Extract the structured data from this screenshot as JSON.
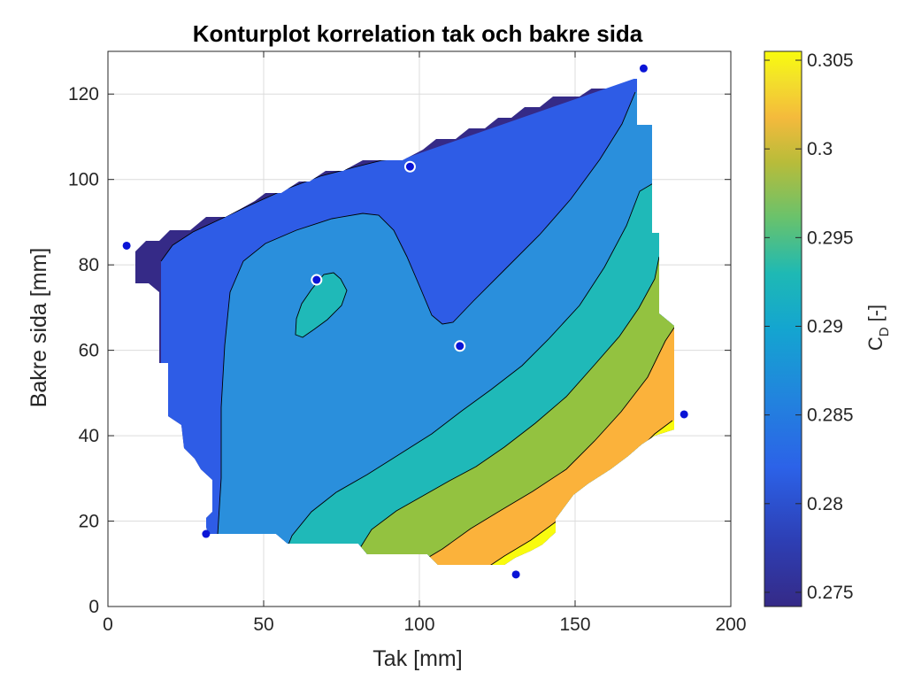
{
  "chart_data": {
    "type": "contour",
    "title": "Konturplot korrelation tak och bakre sida",
    "xlabel": "Tak [mm]",
    "ylabel": "Bakre sida [mm]",
    "xlim": [
      0,
      200
    ],
    "ylim": [
      0,
      130
    ],
    "xticks": [
      0,
      50,
      100,
      150,
      200
    ],
    "yticks": [
      0,
      20,
      40,
      60,
      80,
      100,
      120
    ],
    "grid": true,
    "colorbar": {
      "label_main": "C",
      "label_sub": "D",
      "label_unit": "[-]",
      "ticks": [
        "0.275",
        "0.28",
        "0.285",
        "0.29",
        "0.295",
        "0.3",
        "0.305"
      ],
      "range": [
        0.2742,
        0.3055
      ]
    },
    "contour_levels": [
      0.2765,
      0.2795,
      0.2825,
      0.2875,
      0.2925,
      0.2975,
      0.3025
    ],
    "level_colors": [
      "#352a87",
      "#2e5ce6",
      "#2a8fdc",
      "#1fb9b8",
      "#93c240",
      "#fbb23b",
      "#f9fb0e"
    ],
    "points": [
      {
        "x": 6,
        "y": 84.5,
        "outlined": false
      },
      {
        "x": 97,
        "y": 103,
        "outlined": true
      },
      {
        "x": 67,
        "y": 76.5,
        "outlined": true
      },
      {
        "x": 113,
        "y": 61,
        "outlined": true
      },
      {
        "x": 172,
        "y": 126,
        "outlined": false
      },
      {
        "x": 185,
        "y": 45,
        "outlined": false
      },
      {
        "x": 31.5,
        "y": 17,
        "outlined": false
      },
      {
        "x": 131,
        "y": 7.5,
        "outlined": false
      }
    ],
    "colors": {
      "point": "#0a14d6",
      "background": "#ffffff"
    }
  }
}
